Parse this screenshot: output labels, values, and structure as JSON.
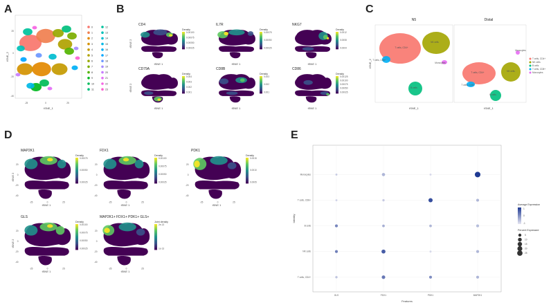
{
  "panels": [
    {
      "letter": "A"
    },
    {
      "letter": "B"
    },
    {
      "letter": "C"
    },
    {
      "letter": "D"
    },
    {
      "letter": "E"
    }
  ],
  "panelA": {
    "xlabel": "tSNE_1",
    "ylabel": "tSNE_2",
    "x_ticks": [
      "-25",
      "0",
      "25"
    ],
    "y_ticks": [
      "20",
      "0",
      "-20",
      "-40"
    ],
    "clusters": [
      "0",
      "1",
      "2",
      "3",
      "4",
      "5",
      "6",
      "7",
      "8",
      "9",
      "10",
      "11",
      "12",
      "13",
      "14",
      "15",
      "16",
      "17",
      "18",
      "19",
      "20",
      "21",
      "22",
      "23"
    ],
    "cluster_colors": [
      "#f8766d",
      "#f07f4f",
      "#e38900",
      "#d49200",
      "#c49a00",
      "#b0a200",
      "#99a800",
      "#7cae00",
      "#53b400",
      "#00b81f",
      "#00bc59",
      "#00bf7d",
      "#00c19c",
      "#00c0b8",
      "#00bdd0",
      "#00b8e5",
      "#00b0f6",
      "#00a5ff",
      "#6b97ff",
      "#a58aff",
      "#c77cff",
      "#e36ef6",
      "#f564e3",
      "#fd61d1"
    ]
  },
  "panelB": {
    "subplots": [
      {
        "title": "CD4",
        "legend_title": "Density",
        "legend_ticks": [
          "0.00100",
          "0.00075",
          "0.00050",
          "0.00025"
        ]
      },
      {
        "title": "IL7R",
        "legend_title": "Density",
        "legend_ticks": [
          "0.00075",
          "0.00050",
          "0.00025"
        ]
      },
      {
        "title": "NKG7",
        "legend_title": "Density",
        "legend_ticks": [
          "0.0012",
          "0.0008",
          "0.0004"
        ]
      },
      {
        "title": "CD79A",
        "legend_title": "Density",
        "legend_ticks": [
          "0.004",
          "0.003",
          "0.002",
          "0.001"
        ]
      },
      {
        "title": "CD8B",
        "legend_title": "Density",
        "legend_ticks": [
          "0.003",
          "0.002",
          "0.001"
        ]
      },
      {
        "title": "CD86",
        "legend_title": "Density",
        "legend_ticks": [
          "0.00125",
          "0.00100",
          "0.00075",
          "0.00050",
          "0.00025"
        ]
      }
    ],
    "xlabel": "tSNE 1",
    "ylabel": "tSNE 2"
  },
  "panelC": {
    "left_title": "N5",
    "right_title": "Distal",
    "xlabel": "tSNE_1",
    "ylabel": "tSNE_2",
    "legend": [
      {
        "label": "T cells, CD4+",
        "color": "#f8766d"
      },
      {
        "label": "NK cells",
        "color": "#a3a500"
      },
      {
        "label": "B cells",
        "color": "#00bf7d"
      },
      {
        "label": "T cells, CD8+",
        "color": "#00b0f6"
      },
      {
        "label": "Monocytes",
        "color": "#e76bf3"
      }
    ],
    "cluster_labels": [
      "T cells, CD4+",
      "NK cells",
      "B cells",
      "T cells, CD8+",
      "Monocytes"
    ]
  },
  "panelD": {
    "subplots": [
      {
        "title": "MAP2K1",
        "legend_title": "Density",
        "legend_ticks": [
          "0.00075",
          "0.00050",
          "0.00025"
        ]
      },
      {
        "title": "FDX1",
        "legend_title": "Density",
        "legend_ticks": [
          "0.00100",
          "0.00075",
          "0.00050",
          "0.00025"
        ]
      },
      {
        "title": "PDK1",
        "legend_title": "Density",
        "legend_ticks": [
          "0.0015",
          "0.0010",
          "0.0005"
        ]
      },
      {
        "title": "GLS",
        "legend_title": "Density",
        "legend_ticks": [
          "0.00100",
          "0.00075",
          "0.00050",
          "0.00025"
        ]
      },
      {
        "title": "MAP2K1+ FDX1+ PDK1+ GLS+",
        "legend_title": "Joint density",
        "legend_ticks": [
          "2e-13",
          "1e-13"
        ]
      }
    ],
    "xlabel": "tSNE 1",
    "ylabel": "tSNE 2",
    "x_ticks": [
      "-25",
      "0",
      "25"
    ],
    "y_ticks": [
      "20",
      "0",
      "-20",
      "-40"
    ]
  },
  "chart_data": {
    "type": "scatter",
    "subtype": "dot_plot",
    "xlabel": "Features",
    "ylabel": "Identity",
    "features": [
      "GLS",
      "FDX1",
      "PDK1",
      "MAP2K1"
    ],
    "identities": [
      "Monocytes",
      "T cells, CD8+",
      "B cells",
      "NK cells",
      "T cells, CD4+"
    ],
    "points": [
      {
        "identity": "Monocytes",
        "feature": "GLS",
        "avg_exp": -0.6,
        "pct": 1
      },
      {
        "identity": "Monocytes",
        "feature": "FDX1",
        "avg_exp": -0.3,
        "pct": 6
      },
      {
        "identity": "Monocytes",
        "feature": "PDK1",
        "avg_exp": -0.8,
        "pct": 1
      },
      {
        "identity": "Monocytes",
        "feature": "MAP2K1",
        "avg_exp": 1.5,
        "pct": 27
      },
      {
        "identity": "T cells, CD8+",
        "feature": "GLS",
        "avg_exp": -0.7,
        "pct": 1
      },
      {
        "identity": "T cells, CD8+",
        "feature": "FDX1",
        "avg_exp": -0.6,
        "pct": 2
      },
      {
        "identity": "T cells, CD8+",
        "feature": "PDK1",
        "avg_exp": 1.2,
        "pct": 13
      },
      {
        "identity": "T cells, CD8+",
        "feature": "MAP2K1",
        "avg_exp": -0.3,
        "pct": 4
      },
      {
        "identity": "B cells",
        "feature": "GLS",
        "avg_exp": 0.4,
        "pct": 4
      },
      {
        "identity": "B cells",
        "feature": "FDX1",
        "avg_exp": -0.2,
        "pct": 3
      },
      {
        "identity": "B cells",
        "feature": "PDK1",
        "avg_exp": -0.3,
        "pct": 3
      },
      {
        "identity": "B cells",
        "feature": "MAP2K1",
        "avg_exp": -0.4,
        "pct": 4
      },
      {
        "identity": "NK cells",
        "feature": "GLS",
        "avg_exp": 0.5,
        "pct": 4
      },
      {
        "identity": "NK cells",
        "feature": "FDX1",
        "avg_exp": 1.0,
        "pct": 11
      },
      {
        "identity": "NK cells",
        "feature": "PDK1",
        "avg_exp": -0.8,
        "pct": 1
      },
      {
        "identity": "NK cells",
        "feature": "MAP2K1",
        "avg_exp": -0.3,
        "pct": 4
      },
      {
        "identity": "T cells, CD4+",
        "feature": "GLS",
        "avg_exp": -0.5,
        "pct": 2
      },
      {
        "identity": "T cells, CD4+",
        "feature": "FDX1",
        "avg_exp": 0.6,
        "pct": 8
      },
      {
        "identity": "T cells, CD4+",
        "feature": "PDK1",
        "avg_exp": 0.3,
        "pct": 4
      },
      {
        "identity": "T cells, CD4+",
        "feature": "MAP2K1",
        "avg_exp": -0.3,
        "pct": 4
      }
    ],
    "color_legend": {
      "title": "Average Expression",
      "ticks": [
        "1",
        "0",
        "-1"
      ],
      "range": [
        -1,
        1.5
      ],
      "low_color": "#d9d9ef",
      "high_color": "#1f3a93"
    },
    "size_legend": {
      "title": "Percent Expressed",
      "values": [
        5,
        10,
        15,
        20,
        25
      ]
    }
  }
}
